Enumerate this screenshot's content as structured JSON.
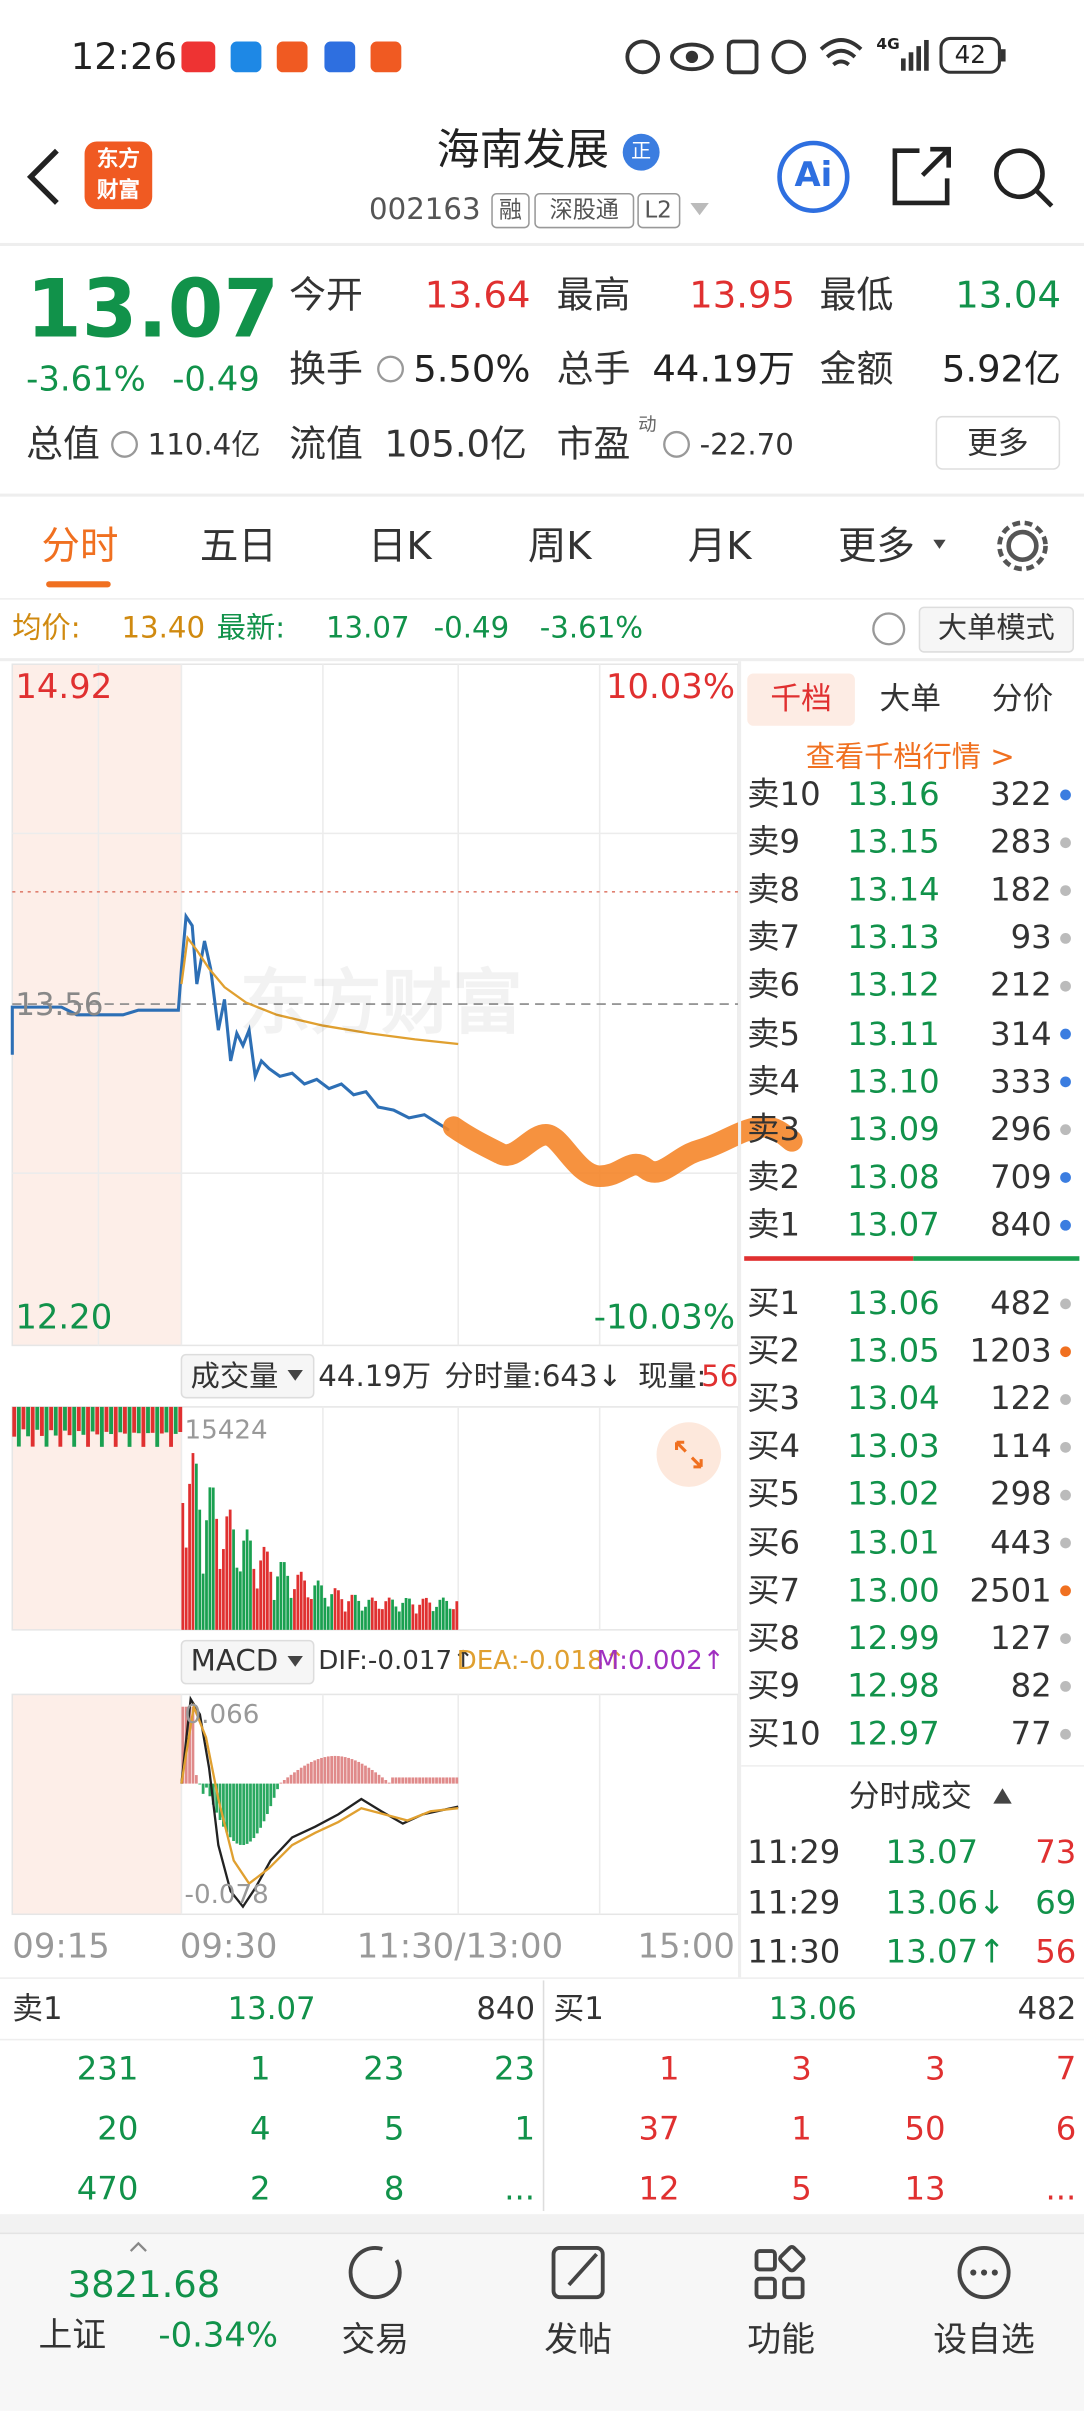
{
  "status_bar": {
    "time": "12:26",
    "network": "4G",
    "battery": "42"
  },
  "header": {
    "logo": [
      "东方",
      "财富"
    ],
    "title": "海南发展",
    "badge": "正",
    "code": "002163",
    "tags": [
      "融",
      "深股通",
      "L2"
    ],
    "ai": "Ai"
  },
  "quote": {
    "price": "13.07",
    "change_pct": "-3.61%",
    "change": "-0.49",
    "fields": [
      {
        "label": "今开",
        "value": "13.64"
      },
      {
        "label": "最高",
        "value": "13.95"
      },
      {
        "label": "最低",
        "value": "13.04"
      },
      {
        "label": "换手",
        "value": "5.50%"
      },
      {
        "label": "总手",
        "value": "44.19万"
      },
      {
        "label": "金额",
        "value": "5.92亿"
      },
      {
        "label": "总值",
        "value": "110.4亿"
      },
      {
        "label": "流值",
        "value": "105.0亿"
      },
      {
        "label": "市盈",
        "value": "-22.70"
      }
    ],
    "pe_note": "动",
    "more": "更多"
  },
  "tabs": [
    "分时",
    "五日",
    "日K",
    "周K",
    "月K",
    "更多"
  ],
  "summary": {
    "avg_label": "均价:",
    "avg": "13.40",
    "last_label": "最新:",
    "last": "13.07",
    "change": "-0.49",
    "change_pct": "-3.61%",
    "mode_button": "大单模式"
  },
  "chart": {
    "high": "14.92",
    "low": "12.20",
    "high_pct": "10.03%",
    "low_pct": "-10.03%",
    "prev_close": "13.56",
    "watermark": "东方财富"
  },
  "volume": {
    "label": "成交量",
    "total": "44.19万",
    "tick_volume": "分时量:643↓",
    "current_label": "现量:",
    "current": "56",
    "max": "15424"
  },
  "macd": {
    "label": "MACD",
    "dif": "DIF:-0.017↑",
    "dea": "DEA:-0.018↑",
    "m": "M:0.002↑",
    "max": "0.066",
    "min": "-0.078"
  },
  "time_axis": [
    "09:15",
    "09:30",
    "11:30/13:00",
    "15:00"
  ],
  "order_book": {
    "tabs": [
      "千档",
      "大单",
      "分价"
    ],
    "link": "查看千档行情 >",
    "asks": [
      [
        "卖10",
        "13.16",
        "322"
      ],
      [
        "卖9",
        "13.15",
        "283"
      ],
      [
        "卖8",
        "13.14",
        "182"
      ],
      [
        "卖7",
        "13.13",
        "93"
      ],
      [
        "卖6",
        "13.12",
        "212"
      ],
      [
        "卖5",
        "13.11",
        "314"
      ],
      [
        "卖4",
        "13.10",
        "333"
      ],
      [
        "卖3",
        "13.09",
        "296"
      ],
      [
        "卖2",
        "13.08",
        "709"
      ],
      [
        "卖1",
        "13.07",
        "840"
      ]
    ],
    "bids": [
      [
        "买1",
        "13.06",
        "482"
      ],
      [
        "买2",
        "13.05",
        "1203"
      ],
      [
        "买3",
        "13.04",
        "122"
      ],
      [
        "买4",
        "13.03",
        "114"
      ],
      [
        "买5",
        "13.02",
        "298"
      ],
      [
        "买6",
        "13.01",
        "443"
      ],
      [
        "买7",
        "13.00",
        "2501"
      ],
      [
        "买8",
        "12.99",
        "127"
      ],
      [
        "买9",
        "12.98",
        "82"
      ],
      [
        "买10",
        "12.97",
        "77"
      ]
    ]
  },
  "trades": {
    "title": "分时成交",
    "rows": [
      [
        "11:29",
        "13.07",
        "73"
      ],
      [
        "11:29",
        "13.06↓",
        "69"
      ],
      [
        "11:30",
        "13.07↑",
        "56"
      ]
    ]
  },
  "level1": {
    "ask": [
      "卖1",
      "13.07",
      "840"
    ],
    "bid": [
      "买1",
      "13.06",
      "482"
    ],
    "ask_rows": [
      [
        "231",
        "1",
        "23",
        "23"
      ],
      [
        "20",
        "4",
        "5",
        "1"
      ],
      [
        "470",
        "2",
        "8",
        "..."
      ]
    ],
    "bid_rows": [
      [
        "1",
        "3",
        "3",
        "7"
      ],
      [
        "37",
        "1",
        "50",
        "6"
      ],
      [
        "12",
        "5",
        "13",
        "..."
      ]
    ]
  },
  "index": {
    "value": "3821.68",
    "name": "上证",
    "change": "-0.34%"
  },
  "nav": [
    "交易",
    "发帖",
    "功能",
    "设自选"
  ]
}
